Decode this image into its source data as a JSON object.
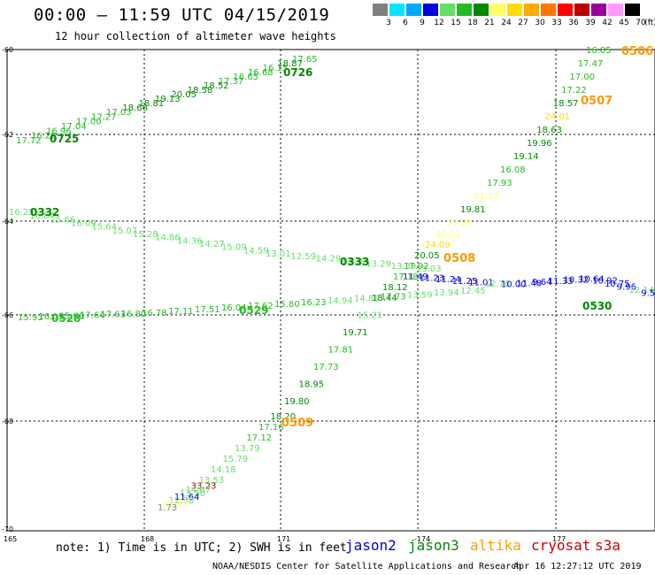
{
  "title": "00:00 – 11:59 UTC 04/15/2019",
  "subtitle": "12 hour collection of altimeter wave heights",
  "legend": {
    "values": [
      "3",
      "6",
      "9",
      "12",
      "15",
      "18",
      "21",
      "24",
      "27",
      "30",
      "33",
      "36",
      "39",
      "42",
      "45",
      "70"
    ],
    "unit": "(ft)",
    "colors": [
      "#808080",
      "#00e5ff",
      "#00a8ff",
      "#0000e0",
      "#66dd66",
      "#22bb22",
      "#008800",
      "#ffff66",
      "#ffdd00",
      "#ffaa00",
      "#ff7700",
      "#ff0000",
      "#bb0000",
      "#990099",
      "#ff99ff",
      "#000000"
    ]
  },
  "axes": {
    "lat_labels": [
      "-60",
      "-62",
      "-64",
      "-66",
      "-68",
      "-70"
    ],
    "lon_labels": [
      "165",
      "168",
      "171",
      "-174",
      "177"
    ]
  },
  "tracks": [
    {
      "name": "0725 / 0726",
      "color": "#22bb22",
      "points": [
        {
          "v": "17.72",
          "c": "#22bb22"
        },
        {
          "v": "16.22",
          "c": "#22bb22"
        },
        {
          "v": "16.96",
          "c": "#22bb22"
        },
        {
          "v": "17.04",
          "c": "#22bb22"
        },
        {
          "v": "17.00",
          "c": "#22bb22"
        },
        {
          "v": "17.27",
          "c": "#22bb22"
        },
        {
          "v": "17.03",
          "c": "#22bb22"
        },
        {
          "v": "18.66",
          "c": "#008800"
        },
        {
          "v": "18.81",
          "c": "#008800"
        },
        {
          "v": "19.13",
          "c": "#008800"
        },
        {
          "v": "20.05",
          "c": "#008800"
        },
        {
          "v": "18.58",
          "c": "#008800"
        },
        {
          "v": "18.52",
          "c": "#008800"
        },
        {
          "v": "17.37",
          "c": "#22bb22"
        },
        {
          "v": "16.65",
          "c": "#22bb22"
        },
        {
          "v": "16.68",
          "c": "#22bb22"
        },
        {
          "v": "16.15",
          "c": "#22bb22"
        },
        {
          "v": "18.87",
          "c": "#008800"
        },
        {
          "v": "17.65",
          "c": "#22bb22"
        }
      ],
      "labels": [
        {
          "t": "0725",
          "c": "#008800"
        },
        {
          "t": "0726",
          "c": "#008800"
        }
      ]
    },
    {
      "name": "0332 / 0333",
      "color": "#66dd66",
      "points": [
        {
          "v": "16.25",
          "c": "#66dd66"
        },
        {
          "v": "16.84",
          "c": "#66dd66"
        },
        {
          "v": "15.66",
          "c": "#66dd66"
        },
        {
          "v": "16.09",
          "c": "#66dd66"
        },
        {
          "v": "15.64",
          "c": "#66dd66"
        },
        {
          "v": "15.07",
          "c": "#66dd66"
        },
        {
          "v": "15.28",
          "c": "#66dd66"
        },
        {
          "v": "14.86",
          "c": "#66dd66"
        },
        {
          "v": "14.36",
          "c": "#66dd66"
        },
        {
          "v": "14.27",
          "c": "#66dd66"
        },
        {
          "v": "15.09",
          "c": "#66dd66"
        },
        {
          "v": "14.59",
          "c": "#66dd66"
        },
        {
          "v": "13.01",
          "c": "#66dd66"
        },
        {
          "v": "12.59",
          "c": "#66dd66"
        },
        {
          "v": "14.29",
          "c": "#66dd66"
        },
        {
          "v": "13.39",
          "c": "#66dd66"
        },
        {
          "v": "13.29",
          "c": "#66dd66"
        },
        {
          "v": "13.39",
          "c": "#66dd66"
        },
        {
          "v": "13.03",
          "c": "#66dd66"
        }
      ],
      "labels": [
        {
          "t": "0332",
          "c": "#008800"
        },
        {
          "t": "0333",
          "c": "#008800"
        }
      ]
    },
    {
      "name": "0529",
      "color": "#22bb22",
      "points": [
        {
          "v": "15.93",
          "c": "#22bb22"
        },
        {
          "v": "16.09",
          "c": "#22bb22"
        },
        {
          "v": "15.86",
          "c": "#22bb22"
        },
        {
          "v": "17.64",
          "c": "#22bb22"
        },
        {
          "v": "17.63",
          "c": "#22bb22"
        },
        {
          "v": "16.80",
          "c": "#22bb22"
        },
        {
          "v": "16.78",
          "c": "#22bb22"
        },
        {
          "v": "17.11",
          "c": "#22bb22"
        },
        {
          "v": "17.51",
          "c": "#22bb22"
        },
        {
          "v": "16.04",
          "c": "#22bb22"
        },
        {
          "v": "17.62",
          "c": "#22bb22"
        },
        {
          "v": "15.80",
          "c": "#22bb22"
        },
        {
          "v": "16.23",
          "c": "#22bb22"
        },
        {
          "v": "14.94",
          "c": "#66dd66"
        },
        {
          "v": "14.86",
          "c": "#66dd66"
        },
        {
          "v": "17.73",
          "c": "#22bb22"
        },
        {
          "v": "13.59",
          "c": "#66dd66"
        },
        {
          "v": "13.94",
          "c": "#66dd66"
        },
        {
          "v": "12.45",
          "c": "#66dd66"
        }
      ],
      "labels": [
        {
          "t": "0528",
          "c": "#22bb22"
        },
        {
          "t": "0529",
          "c": "#22bb22"
        }
      ]
    },
    {
      "name": "0530",
      "color": "#0000e0",
      "points": [
        {
          "v": "11.49",
          "c": "#0000e0"
        },
        {
          "v": "11.23",
          "c": "#0000e0"
        },
        {
          "v": "11.24",
          "c": "#0000e0"
        },
        {
          "v": "11.25",
          "c": "#0000e0"
        },
        {
          "v": "11.01",
          "c": "#0000e0"
        },
        {
          "v": "12.78",
          "c": "#66dd66"
        },
        {
          "v": "10.00",
          "c": "#0000e0"
        },
        {
          "v": "11.48",
          "c": "#0000e0"
        },
        {
          "v": "9.64",
          "c": "#0000e0"
        },
        {
          "v": "11.33",
          "c": "#0000e0"
        },
        {
          "v": "10.32",
          "c": "#0000e0"
        },
        {
          "v": "10.64",
          "c": "#0000e0"
        },
        {
          "v": "10.92",
          "c": "#0000e0"
        },
        {
          "v": "10.75",
          "c": "#0000e0"
        },
        {
          "v": "9.96",
          "c": "#0000e0"
        },
        {
          "v": "12.14",
          "c": "#66dd66"
        },
        {
          "v": "9.5",
          "c": "#0000e0"
        },
        {
          "v": "10.4",
          "c": "#0000e0"
        }
      ],
      "labels": [
        {
          "t": "0530",
          "c": "#008800"
        }
      ]
    },
    {
      "name": "0506 / 0507 / 0508 / 0509",
      "color": "#008800",
      "points": [
        {
          "v": "16.85",
          "c": "#22bb22"
        },
        {
          "v": "17.47",
          "c": "#22bb22"
        },
        {
          "v": "17.00",
          "c": "#22bb22"
        },
        {
          "v": "17.22",
          "c": "#22bb22"
        },
        {
          "v": "18.57",
          "c": "#008800"
        },
        {
          "v": "24.01",
          "c": "#ffdd00"
        },
        {
          "v": "18.63",
          "c": "#008800"
        },
        {
          "v": "19.96",
          "c": "#008800"
        },
        {
          "v": "19.14",
          "c": "#008800"
        },
        {
          "v": "16.08",
          "c": "#22bb22"
        },
        {
          "v": "17.93",
          "c": "#22bb22"
        },
        {
          "v": "21.17",
          "c": "#ffff66"
        },
        {
          "v": "19.81",
          "c": "#008800"
        },
        {
          "v": "21.26",
          "c": "#ffff66"
        },
        {
          "v": "22.11",
          "c": "#ffff66"
        },
        {
          "v": "24.09",
          "c": "#ffdd00"
        },
        {
          "v": "20.05",
          "c": "#008800"
        },
        {
          "v": "17.92",
          "c": "#22bb22"
        },
        {
          "v": "17.18",
          "c": "#22bb22"
        },
        {
          "v": "18.12",
          "c": "#008800"
        },
        {
          "v": "18.44",
          "c": "#008800"
        },
        {
          "v": "15.21",
          "c": "#66dd66"
        },
        {
          "v": "19.71",
          "c": "#008800"
        },
        {
          "v": "17.81",
          "c": "#22bb22"
        },
        {
          "v": "17.73",
          "c": "#22bb22"
        },
        {
          "v": "18.95",
          "c": "#008800"
        },
        {
          "v": "19.80",
          "c": "#008800"
        },
        {
          "v": "18.20",
          "c": "#008800"
        },
        {
          "v": "17.16",
          "c": "#22bb22"
        },
        {
          "v": "17.12",
          "c": "#22bb22"
        },
        {
          "v": "13.79",
          "c": "#66dd66"
        },
        {
          "v": "15.79",
          "c": "#66dd66"
        },
        {
          "v": "14.18",
          "c": "#66dd66"
        },
        {
          "v": "13.53",
          "c": "#66dd66"
        },
        {
          "v": "33.23",
          "c": "#bb0000"
        },
        {
          "v": "14.67",
          "c": "#66dd66"
        },
        {
          "v": "13.50",
          "c": "#66dd66"
        },
        {
          "v": "11.64",
          "c": "#0000e0"
        },
        {
          "v": "12.78",
          "c": "#66dd66"
        },
        {
          "v": "21.47",
          "c": "#ffff66"
        },
        {
          "v": "1.73",
          "c": "#808080"
        }
      ],
      "labels": [
        {
          "t": "0506",
          "c": "#ff9900"
        },
        {
          "t": "0507",
          "c": "#ff9900"
        },
        {
          "t": "0508",
          "c": "#ff9900"
        },
        {
          "t": "0509",
          "c": "#ff9900"
        }
      ]
    }
  ],
  "note": "note: 1) Time is in UTC; 2) SWH is in feet",
  "satellites": [
    {
      "name": "jason2",
      "color": "#0000cc"
    },
    {
      "name": "jason3",
      "color": "#008800"
    },
    {
      "name": "altika",
      "color": "#ff9900"
    },
    {
      "name": "cryosat",
      "color": "#cc0000"
    },
    {
      "name": "s3a",
      "color": "#cc0000"
    }
  ],
  "credit": "NOAA/NESDIS Center for Satellite Applications and Research",
  "timestamp": "Apr 16 12:27:12 UTC 2019"
}
